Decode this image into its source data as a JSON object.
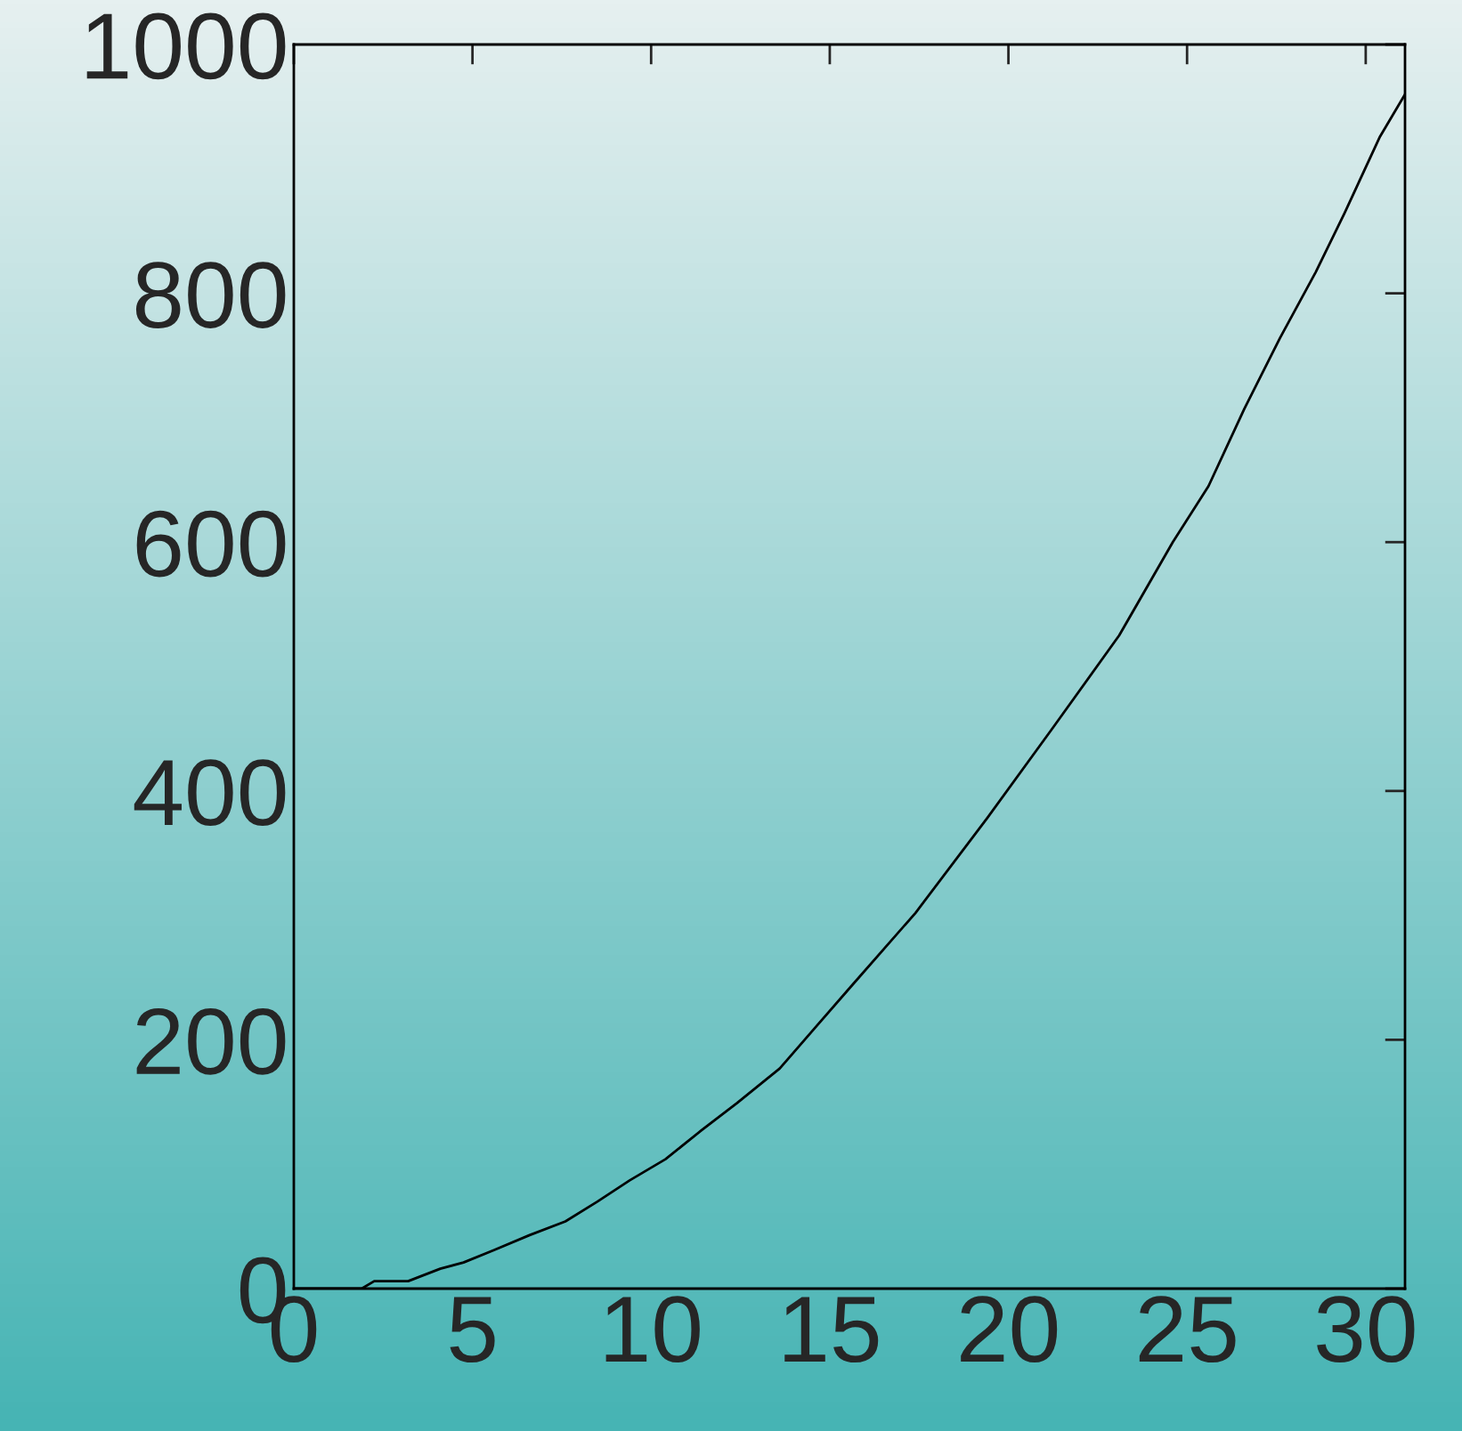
{
  "chart_data": {
    "type": "line",
    "x": [
      0,
      1.9,
      2.25,
      3.2,
      4.1,
      4.75,
      5.6,
      6.6,
      7.6,
      8.5,
      9.4,
      10.4,
      11.4,
      12.4,
      13.6,
      14.6,
      15.6,
      17.4,
      19.4,
      21.2,
      23.1,
      24.6,
      25.6,
      26.6,
      27.6,
      28.6,
      29.4,
      30.4,
      31.1
    ],
    "series": [
      {
        "color": "#000000",
        "values": [
          0,
          0,
          6,
          6,
          16,
          21,
          31,
          43,
          54,
          70,
          87,
          104,
          127,
          149,
          177,
          210,
          243,
          302,
          378,
          449,
          525,
          600,
          645,
          707,
          764,
          817,
          864,
          926,
          960
        ]
      }
    ],
    "xlim": [
      0,
      31.1
    ],
    "ylim": [
      0,
      1000
    ],
    "xticks": [
      0,
      5,
      10,
      15,
      20,
      25,
      30
    ],
    "yticks": [
      0,
      200,
      400,
      600,
      800,
      1000
    ],
    "grid": false,
    "legend": false,
    "marker": "none",
    "line_style": "solid"
  }
}
